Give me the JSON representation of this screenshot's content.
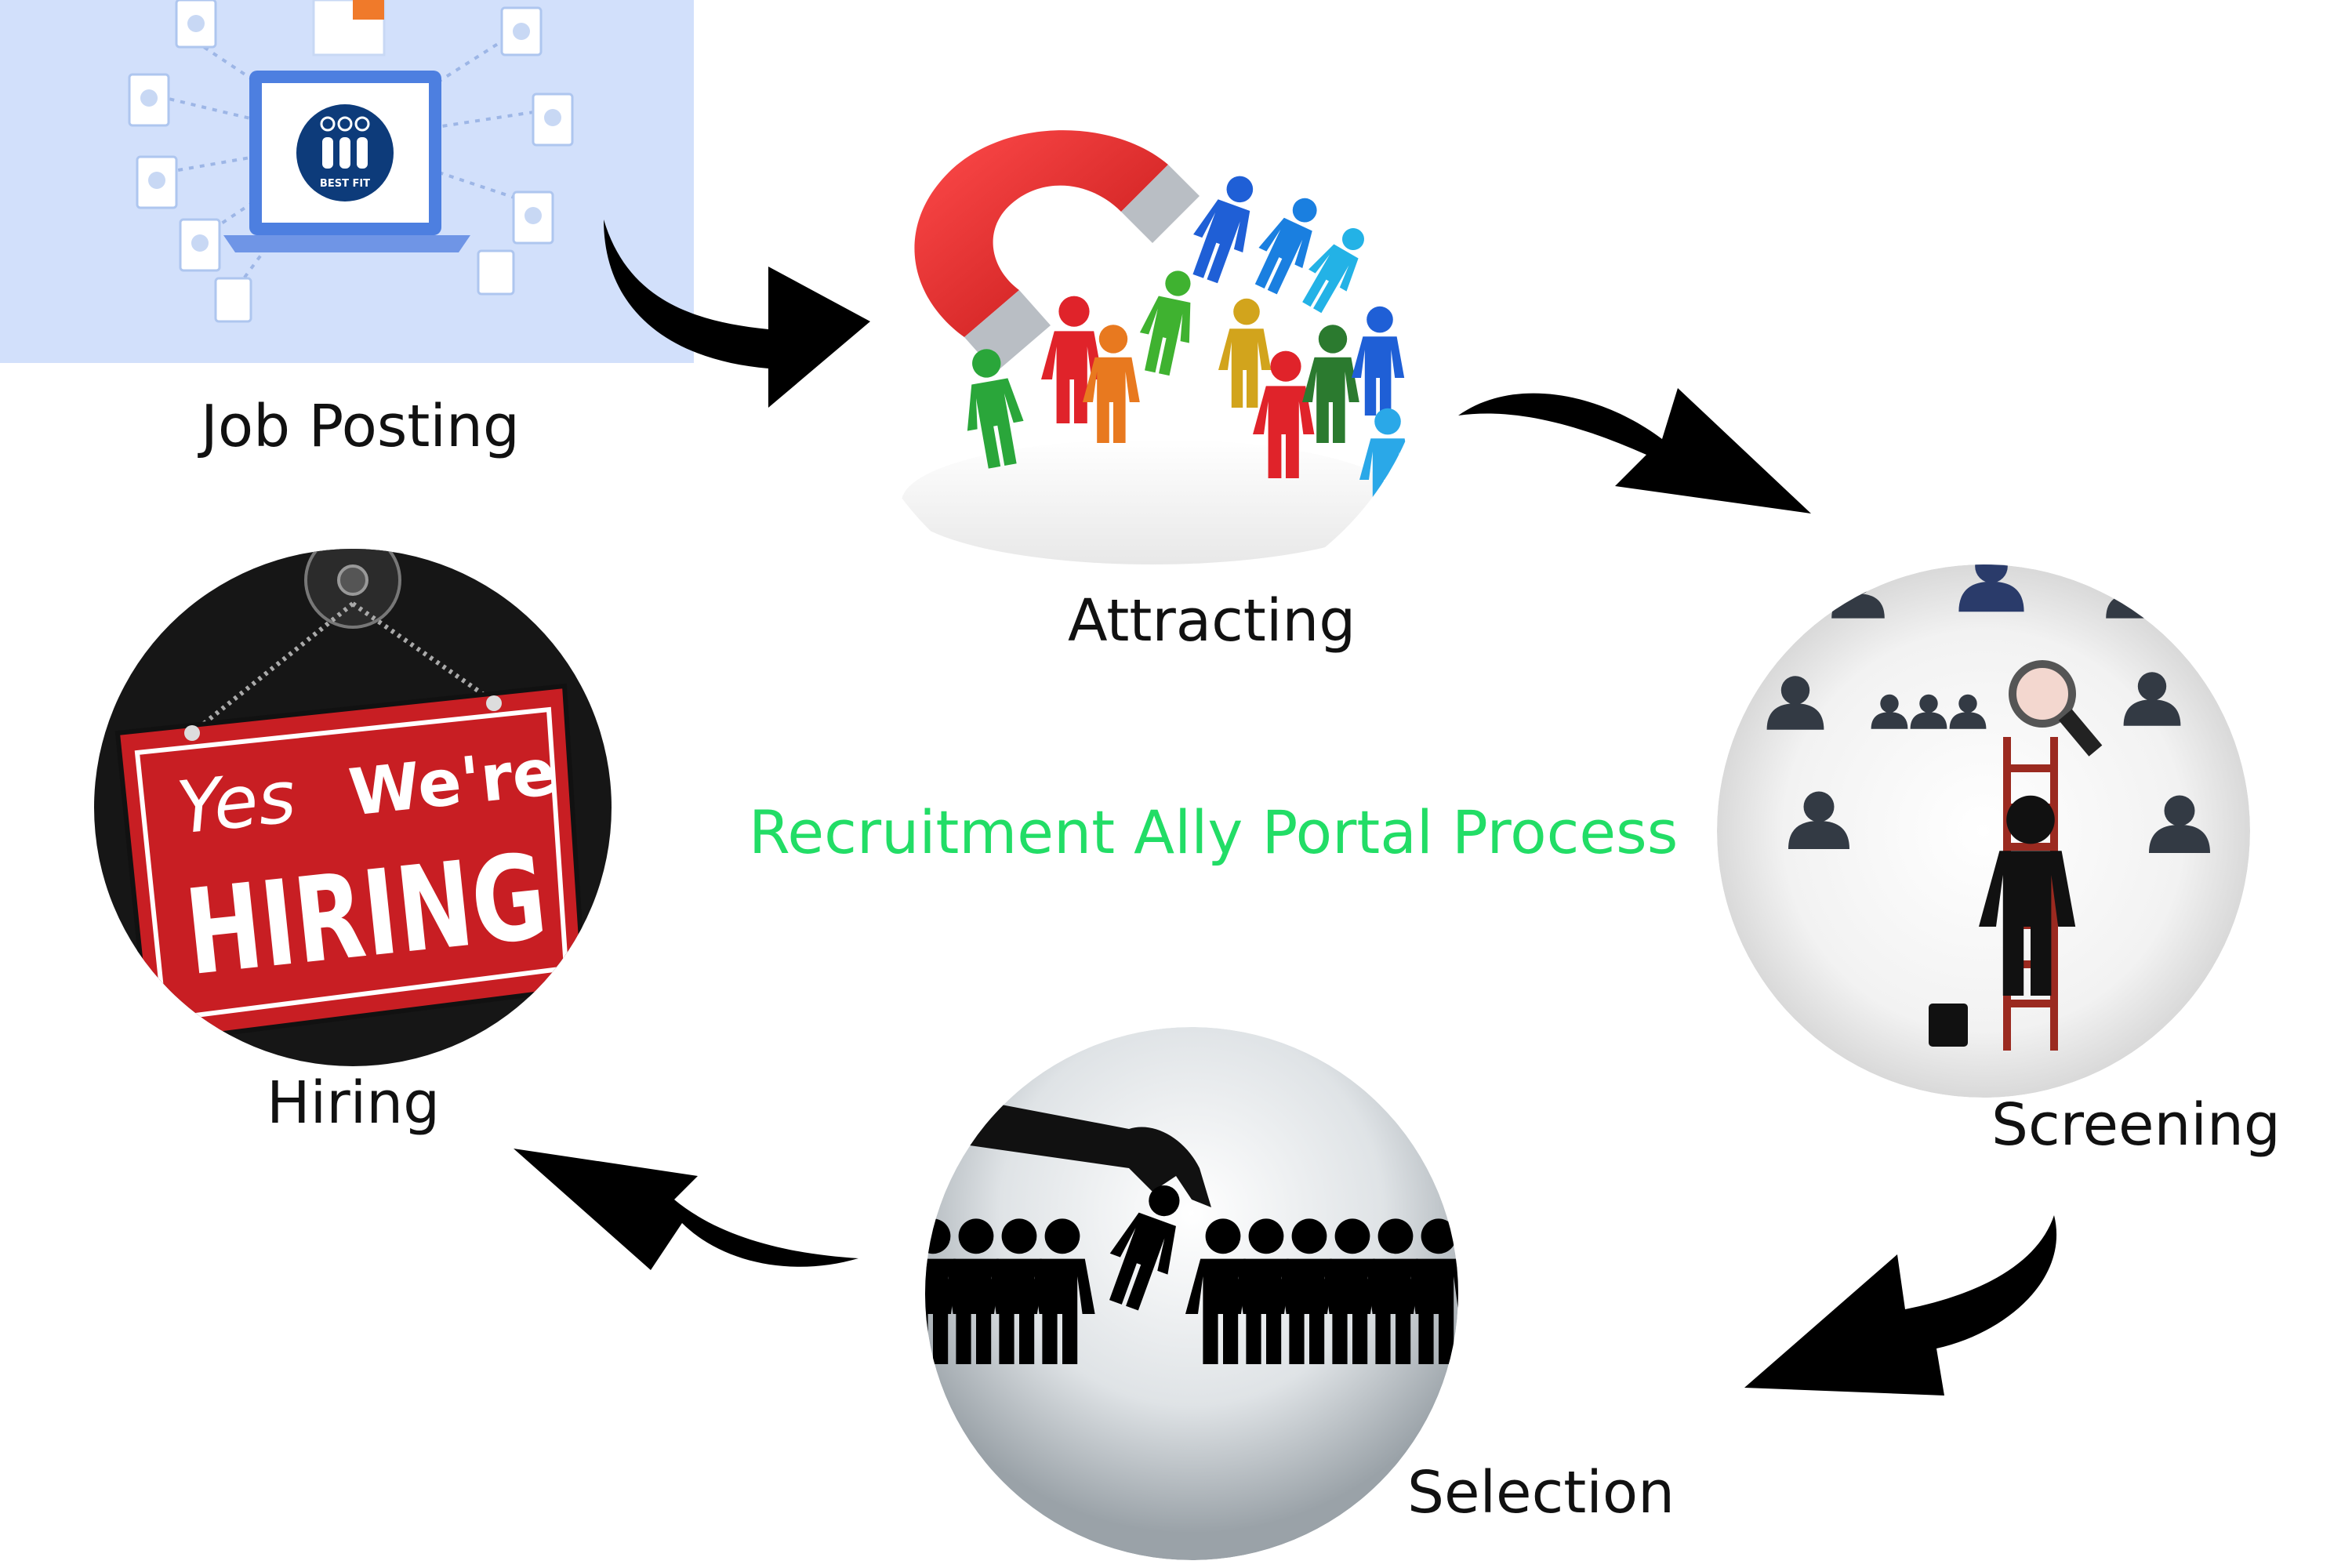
{
  "diagram": {
    "title": "Recruitment Ally Portal Process",
    "title_color": "#22dd66",
    "arrow_color": "#000000",
    "steps": [
      {
        "id": "job-posting",
        "label": "Job Posting",
        "icon": "laptop-resumes-icon"
      },
      {
        "id": "attracting",
        "label": "Attracting",
        "icon": "magnet-people-icon"
      },
      {
        "id": "screening",
        "label": "Screening",
        "icon": "magnifier-candidates-icon"
      },
      {
        "id": "selection",
        "label": "Selection",
        "icon": "hand-picking-person-icon"
      },
      {
        "id": "hiring",
        "label": "Hiring",
        "icon": "hiring-sign-icon"
      }
    ],
    "job_posting_logo_text": "BEST FIT",
    "hiring_sign": {
      "line1_script": "Yes",
      "line1": "We're",
      "line2": "HIRING"
    }
  }
}
